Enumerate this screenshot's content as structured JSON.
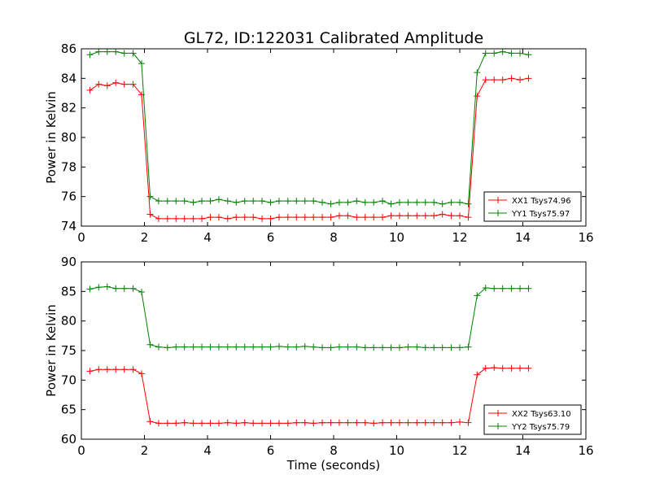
{
  "figure_title": "GL72, ID:122031 Calibrated Amplitude",
  "colors": {
    "xx": "#ff0000",
    "yy": "#008000"
  },
  "chart_data": [
    {
      "type": "line",
      "ylabel": "Power in Kelvin",
      "xlabel": "",
      "xlim": [
        0,
        16
      ],
      "ylim": [
        74,
        86
      ],
      "x_ticks": [
        0,
        2,
        4,
        6,
        8,
        10,
        12,
        14,
        16
      ],
      "y_ticks": [
        74,
        76,
        78,
        80,
        82,
        84,
        86
      ],
      "legend_position": "bottom-right",
      "grid": false,
      "x": [
        0.27,
        0.55,
        0.82,
        1.09,
        1.36,
        1.64,
        1.91,
        2.18,
        2.45,
        2.73,
        3.0,
        3.27,
        3.55,
        3.82,
        4.09,
        4.36,
        4.64,
        4.91,
        5.18,
        5.45,
        5.73,
        6.0,
        6.27,
        6.55,
        6.82,
        7.09,
        7.36,
        7.64,
        7.91,
        8.18,
        8.45,
        8.73,
        9.0,
        9.27,
        9.55,
        9.82,
        10.09,
        10.36,
        10.64,
        10.91,
        11.18,
        11.45,
        11.73,
        12.0,
        12.27,
        12.55,
        12.82,
        13.09,
        13.36,
        13.64,
        13.91,
        14.18
      ],
      "series": [
        {
          "name": "XX1 Tsys74.96",
          "color": "#ff0000",
          "values": [
            83.2,
            83.6,
            83.5,
            83.7,
            83.6,
            83.6,
            82.9,
            74.8,
            74.5,
            74.5,
            74.5,
            74.5,
            74.5,
            74.5,
            74.6,
            74.6,
            74.5,
            74.6,
            74.6,
            74.6,
            74.5,
            74.5,
            74.6,
            74.6,
            74.6,
            74.6,
            74.6,
            74.6,
            74.6,
            74.7,
            74.7,
            74.6,
            74.6,
            74.6,
            74.6,
            74.7,
            74.7,
            74.7,
            74.7,
            74.7,
            74.7,
            74.8,
            74.7,
            74.7,
            74.6,
            82.8,
            83.9,
            83.9,
            83.9,
            84.0,
            83.9,
            84.0
          ]
        },
        {
          "name": "YY1 Tsys75.97",
          "color": "#008000",
          "values": [
            85.6,
            85.8,
            85.8,
            85.8,
            85.7,
            85.7,
            85.0,
            76.0,
            75.7,
            75.7,
            75.7,
            75.7,
            75.6,
            75.7,
            75.7,
            75.8,
            75.7,
            75.6,
            75.7,
            75.7,
            75.7,
            75.6,
            75.7,
            75.7,
            75.7,
            75.7,
            75.7,
            75.6,
            75.5,
            75.6,
            75.6,
            75.7,
            75.6,
            75.6,
            75.7,
            75.5,
            75.6,
            75.6,
            75.6,
            75.6,
            75.6,
            75.5,
            75.6,
            75.6,
            75.5,
            84.4,
            85.7,
            85.7,
            85.8,
            85.7,
            85.7,
            85.6
          ]
        }
      ]
    },
    {
      "type": "line",
      "ylabel": "Power in Kelvin",
      "xlabel": "Time (seconds)",
      "xlim": [
        0,
        16
      ],
      "ylim": [
        60,
        90
      ],
      "x_ticks": [
        0,
        2,
        4,
        6,
        8,
        10,
        12,
        14,
        16
      ],
      "y_ticks": [
        60,
        65,
        70,
        75,
        80,
        85,
        90
      ],
      "legend_position": "bottom-right",
      "grid": false,
      "x": [
        0.27,
        0.55,
        0.82,
        1.09,
        1.36,
        1.64,
        1.91,
        2.18,
        2.45,
        2.73,
        3.0,
        3.27,
        3.55,
        3.82,
        4.09,
        4.36,
        4.64,
        4.91,
        5.18,
        5.45,
        5.73,
        6.0,
        6.27,
        6.55,
        6.82,
        7.09,
        7.36,
        7.64,
        7.91,
        8.18,
        8.45,
        8.73,
        9.0,
        9.27,
        9.55,
        9.82,
        10.09,
        10.36,
        10.64,
        10.91,
        11.18,
        11.45,
        11.73,
        12.0,
        12.27,
        12.55,
        12.82,
        13.09,
        13.36,
        13.64,
        13.91,
        14.18
      ],
      "series": [
        {
          "name": "XX2 Tsys63.10",
          "color": "#ff0000",
          "values": [
            71.5,
            71.8,
            71.8,
            71.8,
            71.8,
            71.8,
            71.1,
            63.0,
            62.7,
            62.7,
            62.7,
            62.8,
            62.7,
            62.7,
            62.7,
            62.7,
            62.8,
            62.7,
            62.8,
            62.7,
            62.7,
            62.7,
            62.7,
            62.7,
            62.8,
            62.8,
            62.7,
            62.8,
            62.8,
            62.8,
            62.8,
            62.8,
            62.8,
            62.7,
            62.8,
            62.8,
            62.8,
            62.8,
            62.8,
            62.8,
            62.8,
            62.8,
            62.8,
            62.9,
            62.8,
            70.9,
            72.0,
            72.1,
            72.0,
            72.0,
            72.0,
            72.0
          ]
        },
        {
          "name": "YY2 Tsys75.79",
          "color": "#008000",
          "values": [
            85.4,
            85.7,
            85.8,
            85.5,
            85.5,
            85.5,
            84.9,
            76.0,
            75.6,
            75.5,
            75.6,
            75.6,
            75.6,
            75.6,
            75.6,
            75.6,
            75.6,
            75.6,
            75.6,
            75.6,
            75.6,
            75.6,
            75.7,
            75.6,
            75.6,
            75.7,
            75.6,
            75.5,
            75.5,
            75.6,
            75.6,
            75.6,
            75.5,
            75.5,
            75.5,
            75.5,
            75.5,
            75.6,
            75.6,
            75.5,
            75.5,
            75.5,
            75.5,
            75.5,
            75.6,
            84.3,
            85.6,
            85.5,
            85.5,
            85.5,
            85.5,
            85.5
          ]
        }
      ]
    }
  ]
}
